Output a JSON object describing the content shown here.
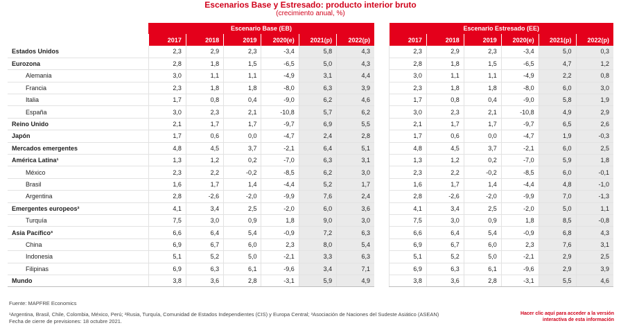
{
  "title": "Escenarios Base y Estresado: producto interior bruto",
  "subtitle": "(crecimiento anual, %)",
  "base": {
    "group_label": "Escenario Base (EB)",
    "years": [
      "2017",
      "2018",
      "2019",
      "2020(e)",
      "2021(p)",
      "2022(p)"
    ]
  },
  "stress": {
    "group_label": "Escenario Estresado (EE)",
    "years": [
      "2017",
      "2018",
      "2019",
      "2020(e)",
      "2021(p)",
      "2022(p)"
    ]
  },
  "rows": [
    {
      "label": "Estados Unidos",
      "sub": false,
      "base": [
        "2,3",
        "2,9",
        "2,3",
        "-3,4",
        "5,8",
        "4,3"
      ],
      "stress": [
        "2,3",
        "2,9",
        "2,3",
        "-3,4",
        "5,0",
        "0,3"
      ]
    },
    {
      "label": "Eurozona",
      "sub": false,
      "base": [
        "2,8",
        "1,8",
        "1,5",
        "-6,5",
        "5,0",
        "4,3"
      ],
      "stress": [
        "2,8",
        "1,8",
        "1,5",
        "-6,5",
        "4,7",
        "1,2"
      ]
    },
    {
      "label": "Alemania",
      "sub": true,
      "base": [
        "3,0",
        "1,1",
        "1,1",
        "-4,9",
        "3,1",
        "4,4"
      ],
      "stress": [
        "3,0",
        "1,1",
        "1,1",
        "-4,9",
        "2,2",
        "0,8"
      ]
    },
    {
      "label": "Francia",
      "sub": true,
      "base": [
        "2,3",
        "1,8",
        "1,8",
        "-8,0",
        "6,3",
        "3,9"
      ],
      "stress": [
        "2,3",
        "1,8",
        "1,8",
        "-8,0",
        "6,0",
        "3,0"
      ]
    },
    {
      "label": "Italia",
      "sub": true,
      "base": [
        "1,7",
        "0,8",
        "0,4",
        "-9,0",
        "6,2",
        "4,6"
      ],
      "stress": [
        "1,7",
        "0,8",
        "0,4",
        "-9,0",
        "5,8",
        "1,9"
      ]
    },
    {
      "label": "España",
      "sub": true,
      "base": [
        "3,0",
        "2,3",
        "2,1",
        "-10,8",
        "5,7",
        "6,2"
      ],
      "stress": [
        "3,0",
        "2,3",
        "2,1",
        "-10,8",
        "4,9",
        "2,9"
      ]
    },
    {
      "label": "Reino Unido",
      "sub": false,
      "base": [
        "2,1",
        "1,7",
        "1,7",
        "-9,7",
        "6,9",
        "5,5"
      ],
      "stress": [
        "2,1",
        "1,7",
        "1,7",
        "-9,7",
        "6,5",
        "2,6"
      ]
    },
    {
      "label": "Japón",
      "sub": false,
      "base": [
        "1,7",
        "0,6",
        "0,0",
        "-4,7",
        "2,4",
        "2,8"
      ],
      "stress": [
        "1,7",
        "0,6",
        "0,0",
        "-4,7",
        "1,9",
        "-0,3"
      ]
    },
    {
      "label": "Mercados emergentes",
      "sub": false,
      "base": [
        "4,8",
        "4,5",
        "3,7",
        "-2,1",
        "6,4",
        "5,1"
      ],
      "stress": [
        "4,8",
        "4,5",
        "3,7",
        "-2,1",
        "6,0",
        "2,5"
      ]
    },
    {
      "label": "América Latina¹",
      "sub": false,
      "base": [
        "1,3",
        "1,2",
        "0,2",
        "-7,0",
        "6,3",
        "3,1"
      ],
      "stress": [
        "1,3",
        "1,2",
        "0,2",
        "-7,0",
        "5,9",
        "1,8"
      ]
    },
    {
      "label": "México",
      "sub": true,
      "base": [
        "2,3",
        "2,2",
        "-0,2",
        "-8,5",
        "6,2",
        "3,0"
      ],
      "stress": [
        "2,3",
        "2,2",
        "-0,2",
        "-8,5",
        "6,0",
        "-0,1"
      ]
    },
    {
      "label": "Brasil",
      "sub": true,
      "base": [
        "1,6",
        "1,7",
        "1,4",
        "-4,4",
        "5,2",
        "1,7"
      ],
      "stress": [
        "1,6",
        "1,7",
        "1,4",
        "-4,4",
        "4,8",
        "-1,0"
      ]
    },
    {
      "label": "Argentina",
      "sub": true,
      "base": [
        "2,8",
        "-2,6",
        "-2,0",
        "-9,9",
        "7,6",
        "2,4"
      ],
      "stress": [
        "2,8",
        "-2,6",
        "-2,0",
        "-9,9",
        "7,0",
        "-1,3"
      ]
    },
    {
      "label": "Emergentes europeos²",
      "sub": false,
      "base": [
        "4,1",
        "3,4",
        "2,5",
        "-2,0",
        "6,0",
        "3,6"
      ],
      "stress": [
        "4,1",
        "3,4",
        "2,5",
        "-2,0",
        "5,0",
        "1,1"
      ]
    },
    {
      "label": "Turquía",
      "sub": true,
      "base": [
        "7,5",
        "3,0",
        "0,9",
        "1,8",
        "9,0",
        "3,0"
      ],
      "stress": [
        "7,5",
        "3,0",
        "0,9",
        "1,8",
        "8,5",
        "-0,8"
      ]
    },
    {
      "label": "Asia Pacífico³",
      "sub": false,
      "base": [
        "6,6",
        "6,4",
        "5,4",
        "-0,9",
        "7,2",
        "6,3"
      ],
      "stress": [
        "6,6",
        "6,4",
        "5,4",
        "-0,9",
        "6,8",
        "4,3"
      ]
    },
    {
      "label": "China",
      "sub": true,
      "base": [
        "6,9",
        "6,7",
        "6,0",
        "2,3",
        "8,0",
        "5,4"
      ],
      "stress": [
        "6,9",
        "6,7",
        "6,0",
        "2,3",
        "7,6",
        "3,1"
      ]
    },
    {
      "label": "Indonesia",
      "sub": true,
      "base": [
        "5,1",
        "5,2",
        "5,0",
        "-2,1",
        "3,3",
        "6,3"
      ],
      "stress": [
        "5,1",
        "5,2",
        "5,0",
        "-2,1",
        "2,9",
        "2,5"
      ]
    },
    {
      "label": "Filipinas",
      "sub": true,
      "base": [
        "6,9",
        "6,3",
        "6,1",
        "-9,6",
        "3,4",
        "7,1"
      ],
      "stress": [
        "6,9",
        "6,3",
        "6,1",
        "-9,6",
        "2,9",
        "3,9"
      ]
    },
    {
      "label": "Mundo",
      "sub": false,
      "base": [
        "3,8",
        "3,6",
        "2,8",
        "-3,1",
        "5,9",
        "4,9"
      ],
      "stress": [
        "3,8",
        "3,6",
        "2,8",
        "-3,1",
        "5,5",
        "4,6"
      ]
    }
  ],
  "footer": {
    "source": "Fuente: MAPFRE Economics",
    "notes": "¹Argentina, Brasil, Chile, Colombia, México, Perú; ²Rusia, Turquía, Comunidad de Estados Independientes (CIS) y Europa Central; ³Asociación de Naciones del Sudeste Asiático (ASEAN)",
    "date": "Fecha de cierre de previsiones: 18 octubre 2021.",
    "link_line1": "Hacer clic aquí para acceder a la versión",
    "link_line2": "interactiva de esta información"
  },
  "colors": {
    "accent": "#e4001b",
    "title": "#d0021b",
    "shade": "#eaeaea"
  }
}
